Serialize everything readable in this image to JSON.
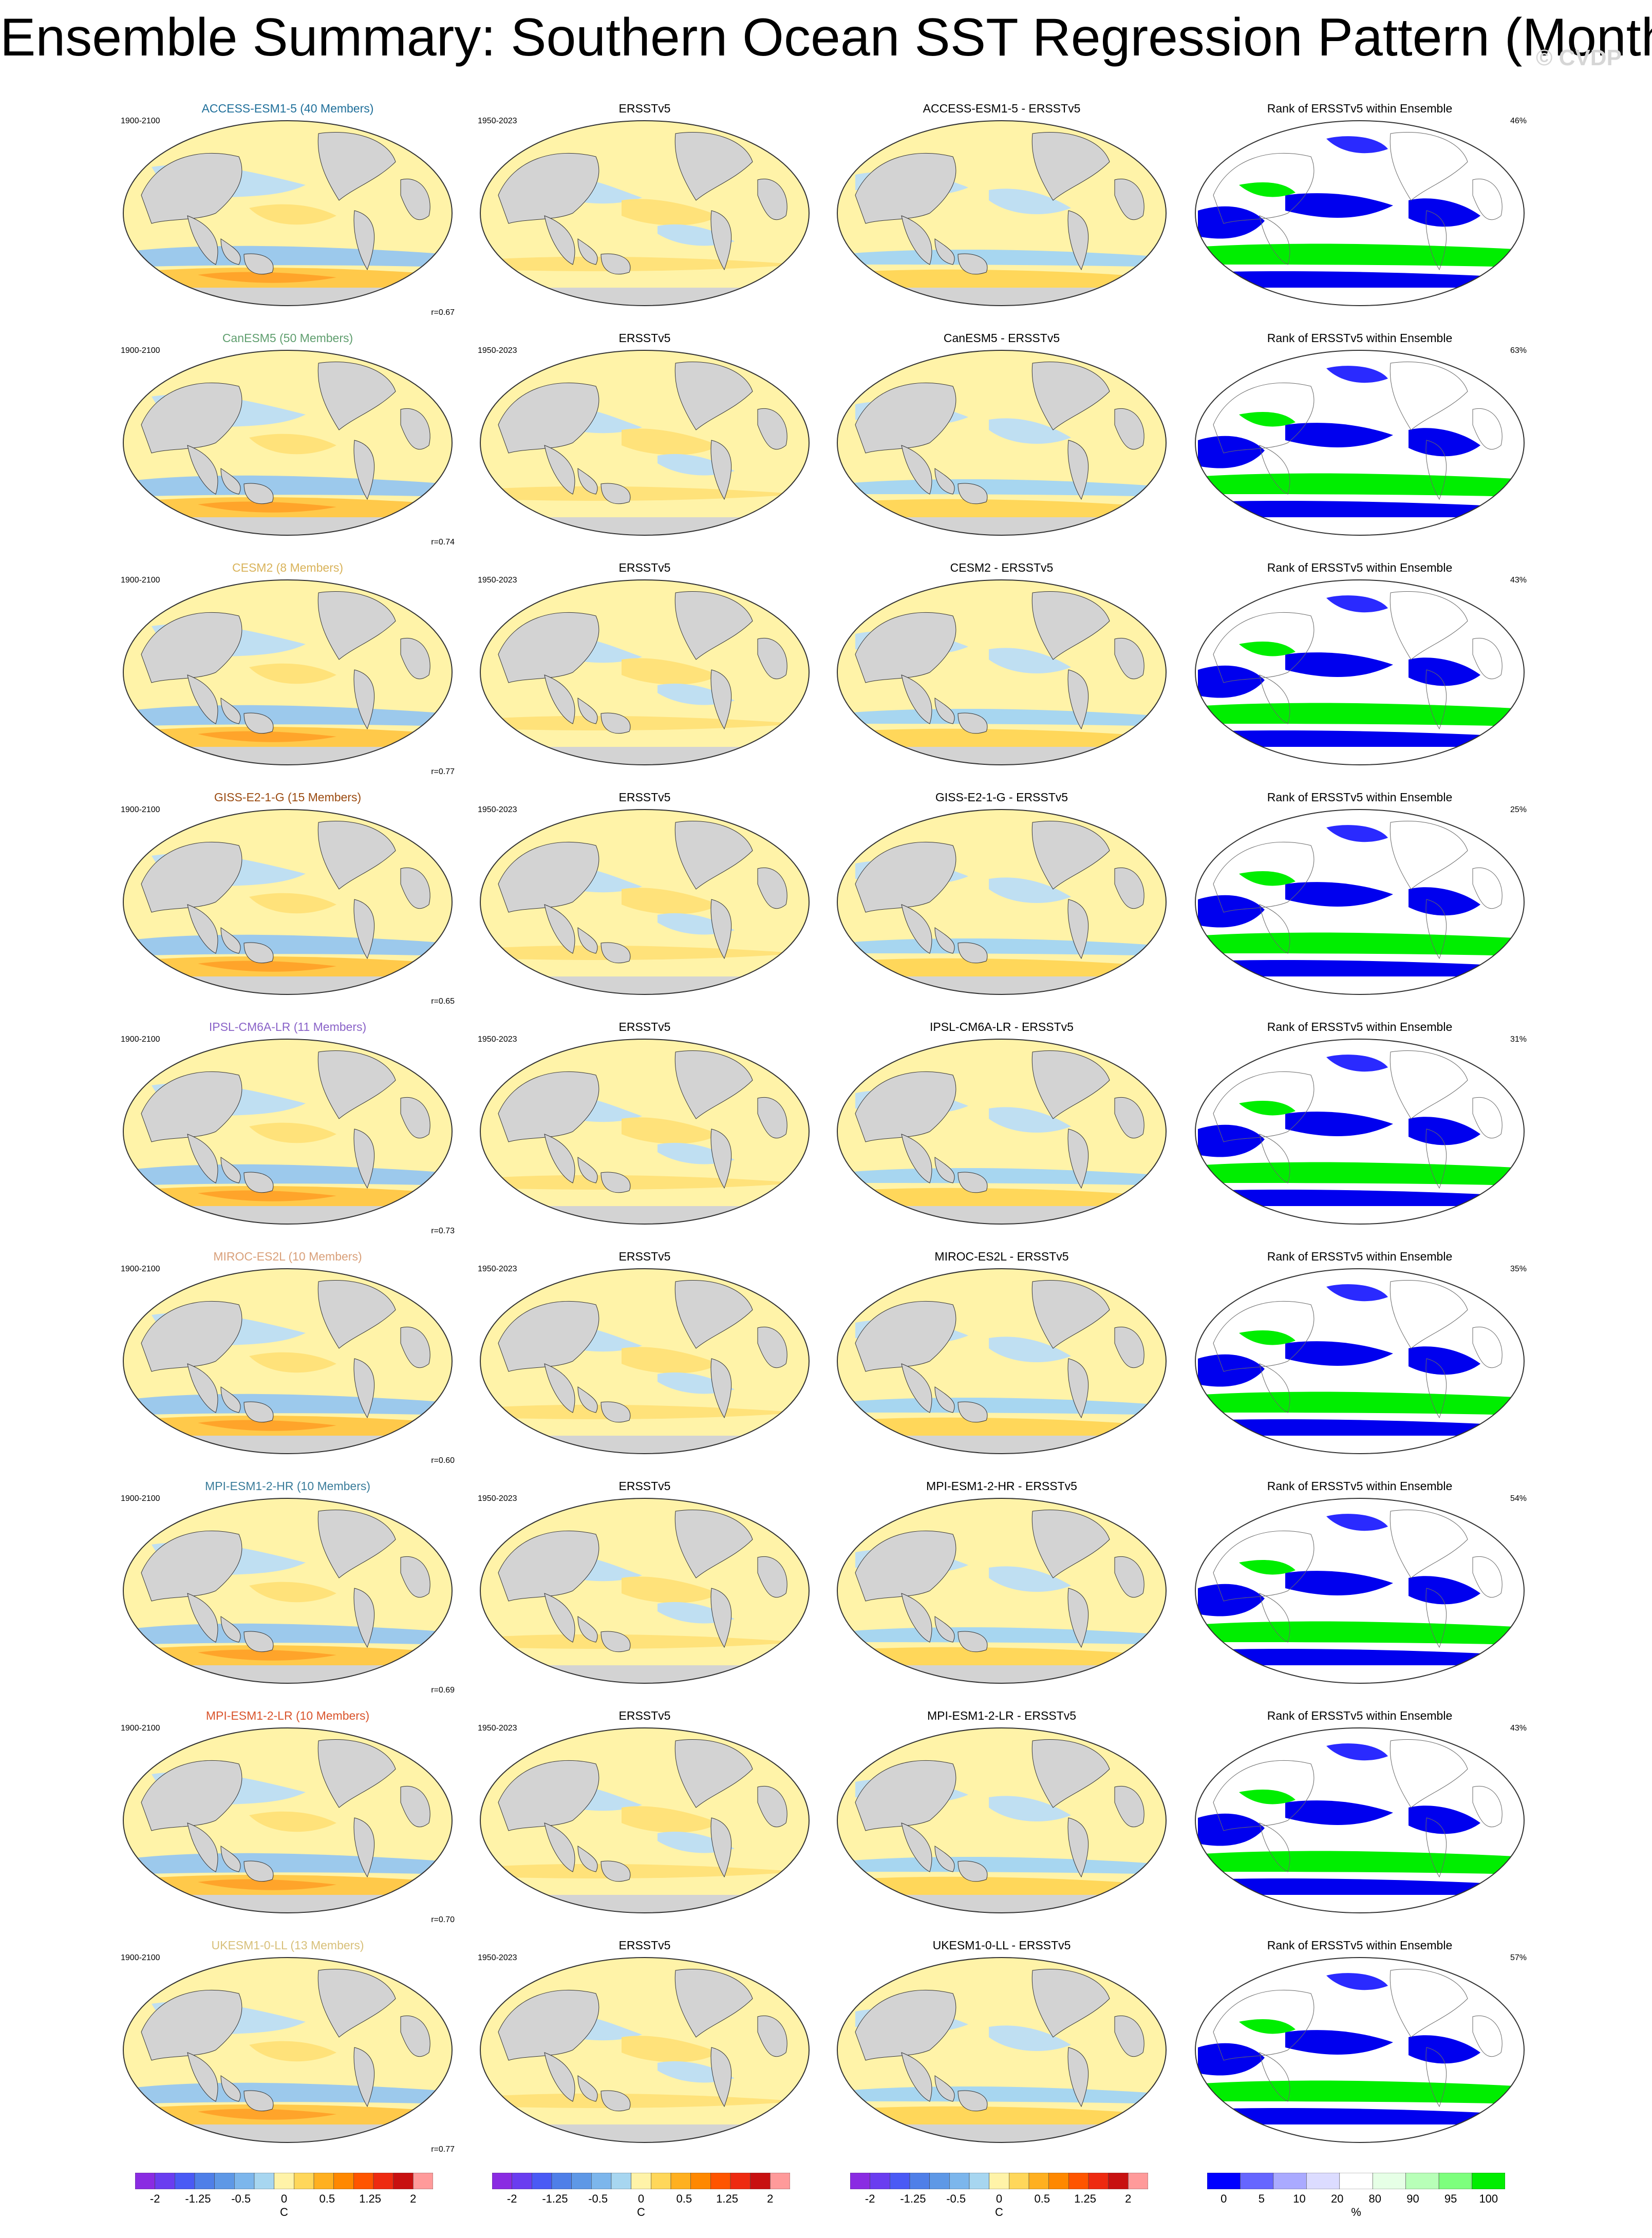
{
  "title": "Ensemble Summary: Southern Ocean SST Regression Pattern (Monthly)",
  "watermark": "© CVDP",
  "model_period": "1900-2100",
  "obs_period": "1950-2023",
  "obs_name": "ERSSTv5",
  "rank_title": "Rank of ERSSTv5 within Ensemble",
  "rows": [
    {
      "model_title": "ACCESS-ESM1-5 (40 Members)",
      "model_color": "#1f6f9a",
      "diff_title": "ACCESS-ESM1-5 - ERSSTv5",
      "corr": "r=0.67",
      "rank_pct": "46%"
    },
    {
      "model_title": "CanESM5 (50 Members)",
      "model_color": "#5f9e6e",
      "diff_title": "CanESM5 - ERSSTv5",
      "corr": "r=0.74",
      "rank_pct": "63%"
    },
    {
      "model_title": "CESM2 (8 Members)",
      "model_color": "#d9b35a",
      "diff_title": "CESM2 - ERSSTv5",
      "corr": "r=0.77",
      "rank_pct": "43%"
    },
    {
      "model_title": "GISS-E2-1-G (15 Members)",
      "model_color": "#9a4a10",
      "diff_title": "GISS-E2-1-G - ERSSTv5",
      "corr": "r=0.65",
      "rank_pct": "25%"
    },
    {
      "model_title": "IPSL-CM6A-LR (11 Members)",
      "model_color": "#8a63c8",
      "diff_title": "IPSL-CM6A-LR - ERSSTv5",
      "corr": "r=0.73",
      "rank_pct": "31%"
    },
    {
      "model_title": "MIROC-ES2L (10 Members)",
      "model_color": "#d9a07a",
      "diff_title": "MIROC-ES2L - ERSSTv5",
      "corr": "r=0.60",
      "rank_pct": "35%"
    },
    {
      "model_title": "MPI-ESM1-2-HR (10 Members)",
      "model_color": "#3a7c9a",
      "diff_title": "MPI-ESM1-2-HR - ERSSTv5",
      "corr": "r=0.69",
      "rank_pct": "54%"
    },
    {
      "model_title": "MPI-ESM1-2-LR (10 Members)",
      "model_color": "#d9542c",
      "diff_title": "MPI-ESM1-2-LR - ERSSTv5",
      "corr": "r=0.70",
      "rank_pct": "43%"
    },
    {
      "model_title": "UKESM1-0-LL (13 Members)",
      "model_color": "#d8c07a",
      "diff_title": "UKESM1-0-LL - ERSSTv5",
      "corr": "r=0.77",
      "rank_pct": "57%"
    }
  ],
  "colorbars": {
    "sst": {
      "ticks": [
        "-2",
        "-1.25",
        "-0.5",
        "0",
        "0.5",
        "1.25",
        "2"
      ],
      "unit": "C",
      "colors": [
        "#8a2be2",
        "#6a3df0",
        "#4a5af5",
        "#4f7fe8",
        "#5e98e6",
        "#7cb6ec",
        "#a7d6f0",
        "#fff3a8",
        "#ffd75a",
        "#ffb020",
        "#ff8800",
        "#ff5500",
        "#ee2a10",
        "#c81010",
        "#ff9a9a"
      ]
    },
    "rank": {
      "ticks": [
        "0",
        "5",
        "10",
        "20",
        "80",
        "90",
        "95",
        "100"
      ],
      "unit": "%",
      "colors": [
        "#0000ff",
        "#6666ff",
        "#aaaaff",
        "#dcdcff",
        "#ffffff",
        "#e6ffe6",
        "#b8ffb8",
        "#7dff7d",
        "#00ee00"
      ]
    }
  }
}
